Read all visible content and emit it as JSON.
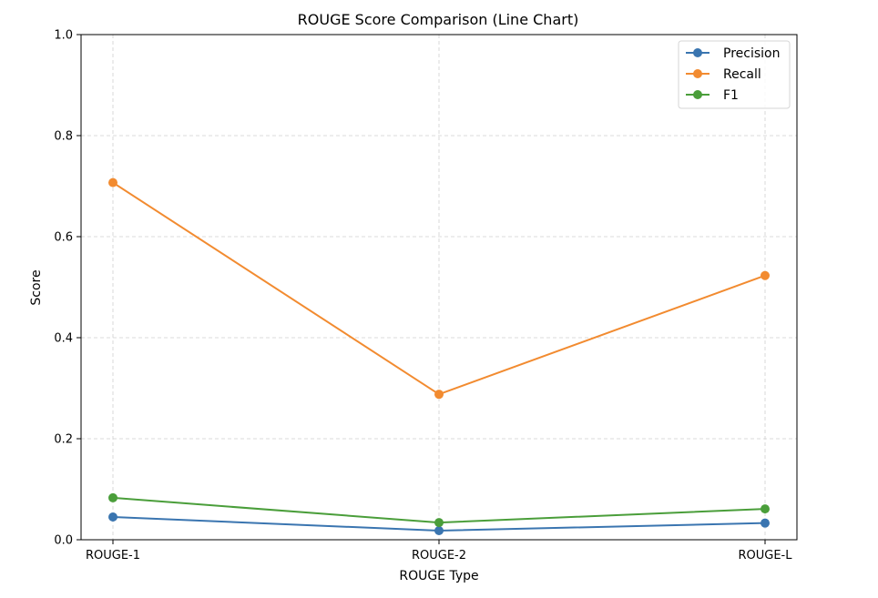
{
  "chart_data": {
    "type": "line",
    "title": "ROUGE Score Comparison (Line Chart)",
    "xlabel": "ROUGE Type",
    "ylabel": "Score",
    "categories": [
      "ROUGE-1",
      "ROUGE-2",
      "ROUGE-L"
    ],
    "ylim": [
      0.0,
      1.0
    ],
    "yticks": [
      "0.0",
      "0.2",
      "0.4",
      "0.6",
      "0.8",
      "1.0"
    ],
    "ytick_values": [
      0.0,
      0.2,
      0.4,
      0.6,
      0.8,
      1.0
    ],
    "grid": true,
    "legend_position": "top-right",
    "series": [
      {
        "name": "Precision",
        "color": "#3a75b0",
        "values": [
          0.045,
          0.018,
          0.033
        ]
      },
      {
        "name": "Recall",
        "color": "#f28b30",
        "values": [
          0.707,
          0.288,
          0.523
        ]
      },
      {
        "name": "F1",
        "color": "#4a9e3a",
        "values": [
          0.083,
          0.034,
          0.061
        ]
      }
    ]
  }
}
